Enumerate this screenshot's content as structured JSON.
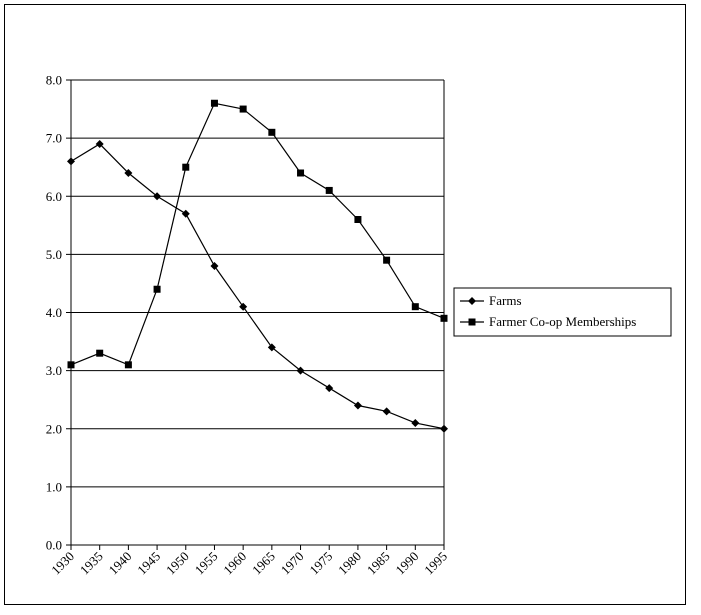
{
  "chart_data": {
    "type": "line",
    "title": "",
    "xlabel": "",
    "ylabel": "",
    "categories": [
      "1930",
      "1935",
      "1940",
      "1945",
      "1950",
      "1955",
      "1960",
      "1965",
      "1970",
      "1975",
      "1980",
      "1985",
      "1990",
      "1995"
    ],
    "y_ticks": [
      "0.0",
      "1.0",
      "2.0",
      "3.0",
      "4.0",
      "5.0",
      "6.0",
      "7.0",
      "8.0"
    ],
    "ylim": [
      0,
      8
    ],
    "grid": "horizontal",
    "legend_position": "right",
    "series": [
      {
        "name": "Farms",
        "marker": "diamond",
        "color": "#000000",
        "values": [
          6.6,
          6.9,
          6.4,
          6.0,
          5.7,
          4.8,
          4.1,
          3.4,
          3.0,
          2.7,
          2.4,
          2.3,
          2.1,
          2.0
        ]
      },
      {
        "name": "Farmer Co-op Memberships",
        "marker": "square",
        "color": "#000000",
        "values": [
          3.1,
          3.3,
          3.1,
          4.4,
          6.5,
          7.6,
          7.5,
          7.1,
          6.4,
          6.1,
          5.6,
          4.9,
          4.1,
          3.9
        ]
      }
    ]
  }
}
